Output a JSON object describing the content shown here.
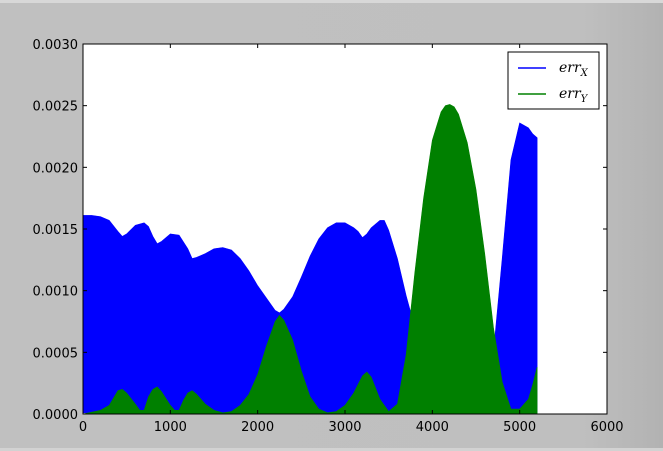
{
  "chart_data": {
    "type": "area",
    "xlim": [
      0,
      6000
    ],
    "ylim": [
      0,
      0.003
    ],
    "xticks": [
      0,
      1000,
      2000,
      3000,
      4000,
      5000,
      6000
    ],
    "xtick_labels": [
      "0",
      "1000",
      "2000",
      "3000",
      "4000",
      "5000",
      "6000"
    ],
    "yticks": [
      0,
      0.0005,
      0.001,
      0.0015,
      0.002,
      0.0025,
      0.003
    ],
    "ytick_labels": [
      "0.0000",
      "0.0005",
      "0.0010",
      "0.0015",
      "0.0020",
      "0.0025",
      "0.0030"
    ],
    "grid": false,
    "legend_position": "top-right",
    "series": [
      {
        "name": "err",
        "subscript": "X",
        "color": "#0000ff",
        "x": [
          0,
          100,
          200,
          300,
          400,
          450,
          500,
          600,
          700,
          750,
          800,
          850,
          900,
          1000,
          1100,
          1200,
          1250,
          1300,
          1400,
          1500,
          1600,
          1700,
          1800,
          1900,
          2000,
          2100,
          2200,
          2250,
          2300,
          2400,
          2500,
          2600,
          2700,
          2800,
          2900,
          3000,
          3100,
          3150,
          3200,
          3250,
          3300,
          3400,
          3450,
          3500,
          3600,
          3700,
          3800,
          3900,
          3950,
          4000,
          4100,
          4200,
          4300,
          4400,
          4500,
          4600,
          4700,
          4800,
          4900,
          5000,
          5100,
          5150,
          5200
        ],
        "upper": [
          0.00161,
          0.00161,
          0.0016,
          0.00157,
          0.00148,
          0.00144,
          0.00146,
          0.00153,
          0.00155,
          0.00152,
          0.00144,
          0.00138,
          0.0014,
          0.00146,
          0.00145,
          0.00134,
          0.00126,
          0.00127,
          0.0013,
          0.00134,
          0.00135,
          0.00133,
          0.00126,
          0.00116,
          0.00104,
          0.00094,
          0.00084,
          0.00082,
          0.00085,
          0.00095,
          0.00111,
          0.00128,
          0.00142,
          0.00151,
          0.00155,
          0.00155,
          0.00151,
          0.00148,
          0.00143,
          0.00146,
          0.00151,
          0.00157,
          0.00157,
          0.00149,
          0.00126,
          0.00096,
          0.0007,
          0.00048,
          0.00052,
          0.00064,
          0.00075,
          0.00076,
          0.00074,
          0.00055,
          0.00035,
          0.00018,
          0.0005,
          0.00126,
          0.00206,
          0.00236,
          0.00232,
          0.00227,
          0.00224
        ],
        "lower": [
          1e-05,
          1e-05,
          1e-05,
          1e-05,
          1e-05,
          1e-05,
          1e-05,
          1e-05,
          1e-05,
          1e-05,
          1e-05,
          1e-05,
          1e-05,
          1e-05,
          1e-05,
          1e-05,
          1e-05,
          1e-05,
          1e-05,
          1e-05,
          1e-05,
          1e-05,
          1e-05,
          1e-05,
          1e-05,
          1e-05,
          1e-05,
          1e-05,
          1e-05,
          1e-05,
          1e-05,
          1e-05,
          1e-05,
          1e-05,
          1e-05,
          1e-05,
          1e-05,
          1e-05,
          1e-05,
          1e-05,
          1e-05,
          1e-05,
          1e-05,
          1e-05,
          1e-05,
          1e-05,
          1e-05,
          2e-05,
          3e-05,
          4e-05,
          6e-05,
          6e-05,
          5e-05,
          4e-05,
          3e-05,
          2e-05,
          1e-05,
          1e-05,
          1e-05,
          1e-05,
          1e-05,
          1e-05,
          1e-05
        ]
      },
      {
        "name": "err",
        "subscript": "Y",
        "color": "#008000",
        "x": [
          0,
          200,
          300,
          350,
          400,
          450,
          500,
          600,
          650,
          700,
          750,
          800,
          850,
          900,
          1000,
          1050,
          1100,
          1150,
          1200,
          1250,
          1300,
          1400,
          1500,
          1600,
          1700,
          1800,
          1900,
          2000,
          2100,
          2200,
          2250,
          2300,
          2400,
          2500,
          2600,
          2700,
          2800,
          2900,
          3000,
          3100,
          3200,
          3250,
          3300,
          3400,
          3500,
          3600,
          3700,
          3800,
          3900,
          4000,
          4100,
          4150,
          4200,
          4250,
          4300,
          4400,
          4500,
          4600,
          4700,
          4800,
          4900,
          5000,
          5100,
          5150,
          5200
        ],
        "upper": [
          0,
          3e-05,
          7e-05,
          0.00013,
          0.00019,
          0.0002,
          0.00017,
          8e-05,
          3e-05,
          3e-05,
          0.00014,
          0.0002,
          0.00022,
          0.00018,
          7e-05,
          3e-05,
          3e-05,
          0.00011,
          0.00017,
          0.00019,
          0.00016,
          8e-05,
          3e-05,
          1e-05,
          2e-05,
          7e-05,
          0.00016,
          0.00032,
          0.00055,
          0.00075,
          0.0008,
          0.00076,
          0.0006,
          0.00035,
          0.00014,
          4e-05,
          1e-05,
          2e-05,
          7e-05,
          0.00017,
          0.00031,
          0.00034,
          0.0003,
          0.00012,
          2e-05,
          8e-05,
          0.00048,
          0.00115,
          0.00175,
          0.00222,
          0.00245,
          0.0025,
          0.00251,
          0.00249,
          0.00243,
          0.0022,
          0.00182,
          0.0013,
          0.0007,
          0.00026,
          4e-05,
          4e-05,
          0.00012,
          0.00024,
          0.00038
        ],
        "lower": [
          0,
          0,
          0,
          0,
          0,
          0,
          0,
          0,
          0,
          0,
          0,
          0,
          0,
          0,
          0,
          0,
          0,
          0,
          0,
          0,
          0,
          0,
          0,
          0,
          0,
          0,
          0,
          0,
          0,
          0,
          0,
          0,
          0,
          0,
          0,
          0,
          0,
          0,
          0,
          0,
          0,
          0,
          0,
          0,
          0,
          0,
          0,
          0,
          0,
          0,
          0,
          0,
          0,
          0,
          0,
          0,
          0,
          0,
          0,
          0,
          0,
          0,
          0,
          0,
          0
        ]
      }
    ]
  }
}
